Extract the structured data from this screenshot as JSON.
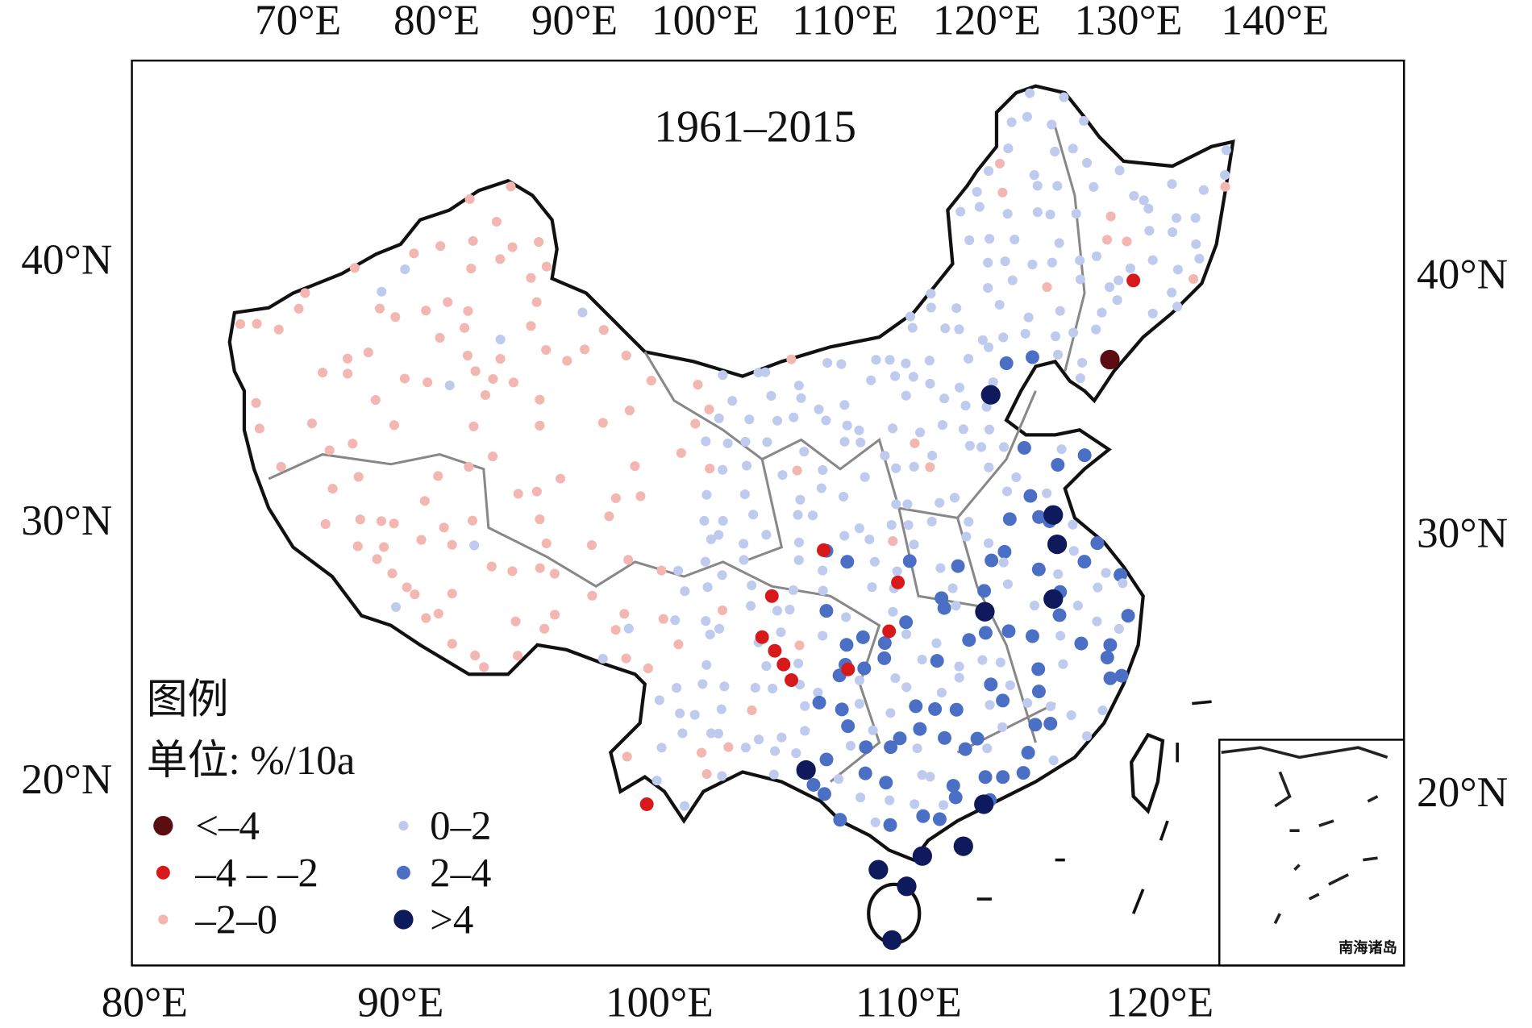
{
  "map": {
    "title": "1961–2015",
    "top_lon_labels": [
      "70°E",
      "80°E",
      "90°E",
      "100°E",
      "110°E",
      "120°E",
      "130°E",
      "140°E"
    ],
    "bottom_lon_labels": [
      "80°E",
      "90°E",
      "100°E",
      "110°E",
      "120°E"
    ],
    "left_lat_labels": [
      "40°N",
      "30°N",
      "20°N"
    ],
    "right_lat_labels": [
      "40°N",
      "30°N",
      "20°N"
    ],
    "legend": {
      "title": "图例",
      "unit": "单位: %/10a",
      "items": [
        {
          "label": "<–4",
          "color": "#5a0e12"
        },
        {
          "label": "–4 – –2",
          "color": "#d7191c"
        },
        {
          "label": "–2–0",
          "color": "#f4b6b0"
        },
        {
          "label": "0–2",
          "color": "#bfcbee"
        },
        {
          "label": "2–4",
          "color": "#4a6fc4"
        },
        {
          "label": ">4",
          "color": "#0f1a5c"
        }
      ]
    },
    "inset_label": "南海诸岛"
  }
}
